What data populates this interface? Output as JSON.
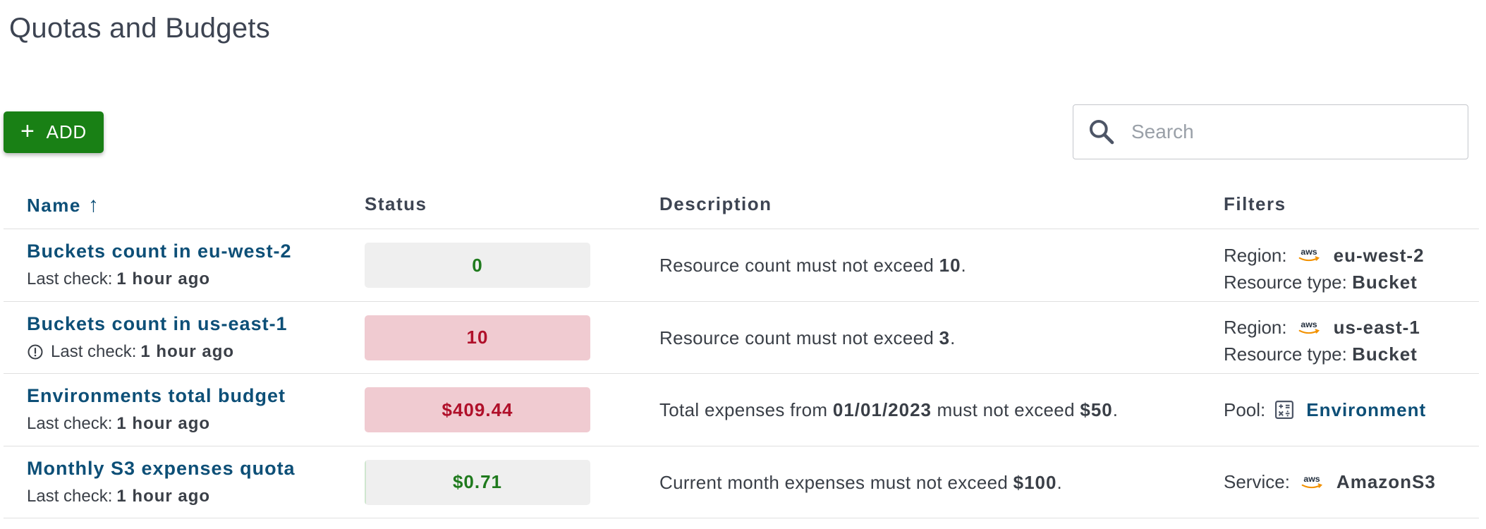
{
  "page": {
    "title": "Quotas and Budgets"
  },
  "toolbar": {
    "add_icon": "+",
    "add_label": "ADD",
    "search_placeholder": "Search"
  },
  "table": {
    "columns": {
      "name": "Name",
      "status": "Status",
      "description": "Description",
      "filters": "Filters"
    },
    "sort_icon": "↑",
    "rows": [
      {
        "name": "Buckets count in eu-west-2",
        "last_check_label": "Last check:",
        "last_check_value": "1 hour ago",
        "status": "0",
        "status_kind": "ok",
        "status_progress": 0,
        "desc_pre": "Resource count must not exceed ",
        "desc_limit": "10",
        "desc_post": ".",
        "filter1_label": "Region:",
        "filter1_icon": "aws-icon",
        "filter1_value": "eu-west-2",
        "filter2_label": "Resource type:",
        "filter2_value": "Bucket"
      },
      {
        "name": "Buckets count in us-east-1",
        "last_check_label": "Last check:",
        "last_check_value": "1 hour ago",
        "status": "10",
        "status_kind": "bad",
        "desc_pre": "Resource count must not exceed ",
        "desc_limit": "3",
        "desc_post": ".",
        "filter1_label": "Region:",
        "filter1_icon": "aws-icon",
        "filter1_value": "us-east-1",
        "filter2_label": "Resource type:",
        "filter2_value": "Bucket"
      },
      {
        "name": "Environments total budget",
        "last_check_label": "Last check:",
        "last_check_value": "1 hour ago",
        "status": "$409.44",
        "status_kind": "bad",
        "desc_pre": "Total expenses from ",
        "desc_date": "01/01/2023",
        "desc_mid": " must not exceed ",
        "desc_limit": "$50",
        "desc_post": ".",
        "filter1_label": "Pool:",
        "filter1_icon": "pool-icon",
        "filter1_value": "Environment"
      },
      {
        "name": "Monthly S3 expenses quota",
        "last_check_label": "Last check:",
        "last_check_value": "1 hour ago",
        "status": "$0.71",
        "status_kind": "ok",
        "status_progress": 0.0071,
        "desc_pre": "Current month expenses must not exceed ",
        "desc_limit": "$100",
        "desc_post": ".",
        "filter1_label": "Service:",
        "filter1_icon": "aws-icon",
        "filter1_value": "AmazonS3"
      }
    ]
  },
  "colors": {
    "primary": "#198015",
    "link": "#0d4f77",
    "ok_text": "#1f7a1d",
    "bad_bg": "#f0cbd1",
    "bad_text": "#b0102a"
  }
}
